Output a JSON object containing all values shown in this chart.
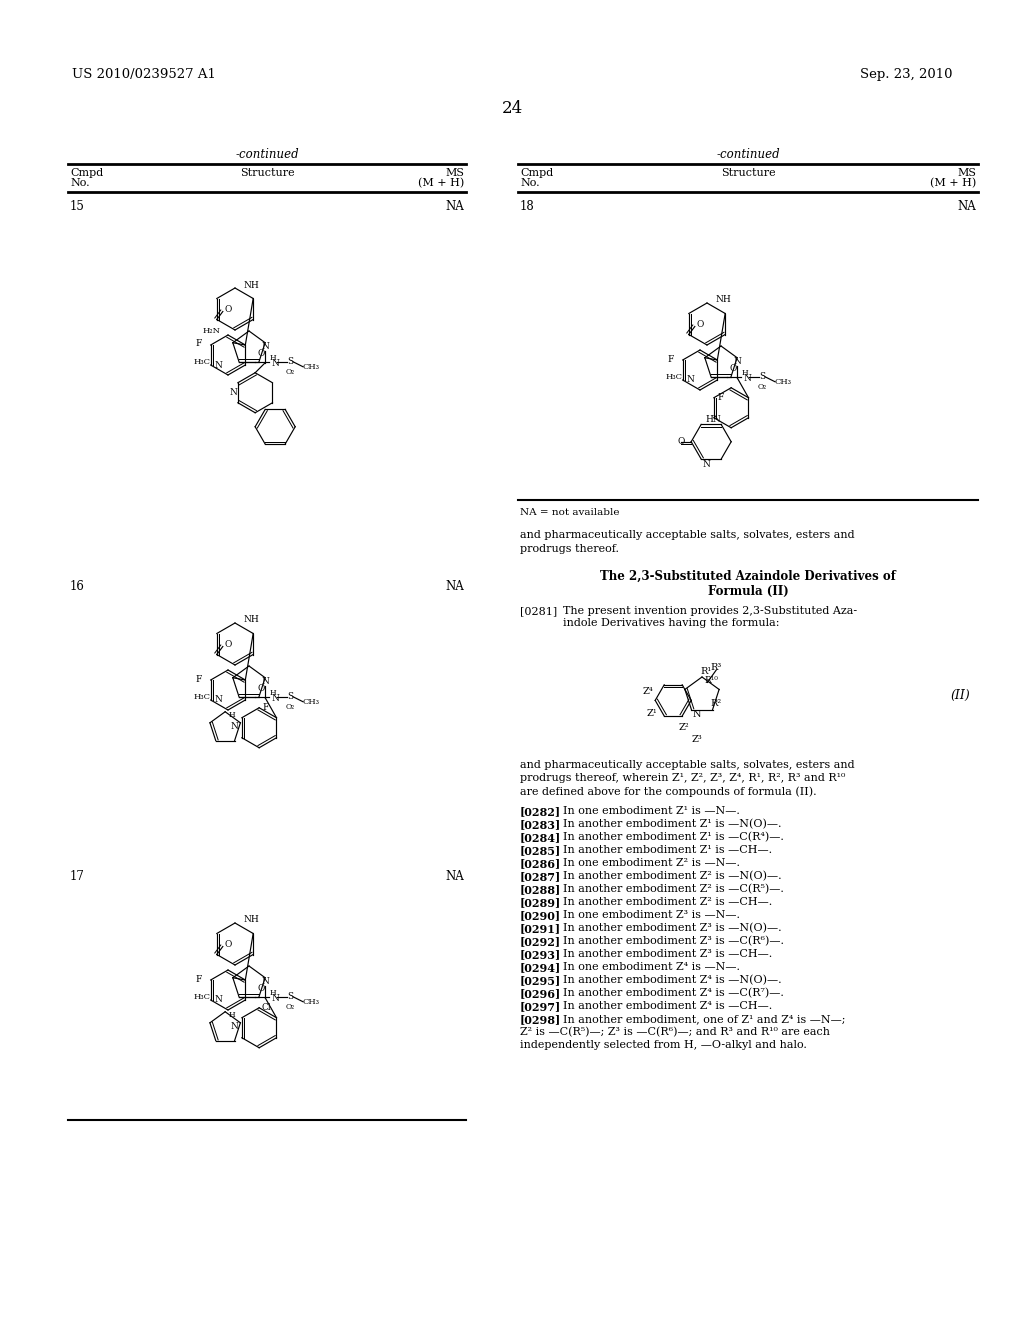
{
  "page_header_left": "US 2010/0239527 A1",
  "page_header_right": "Sep. 23, 2010",
  "page_number": "24",
  "bg_color": "#ffffff",
  "left_table_title": "-continued",
  "right_table_title": "-continued",
  "left_col_headers": [
    "Cmpd\nNo.",
    "Structure",
    "MS\n(M + H)"
  ],
  "right_col_headers": [
    "Cmpd\nNo.",
    "Structure",
    "MS\n(M + H)"
  ],
  "compounds_left": [
    {
      "num": "15",
      "ms": "NA"
    },
    {
      "num": "16",
      "ms": "NA"
    },
    {
      "num": "17",
      "ms": "NA"
    }
  ],
  "compounds_right": [
    {
      "num": "18",
      "ms": "NA"
    }
  ],
  "na_note": "NA = not available",
  "text_block1": "and pharmaceutically acceptable salts, solvates, esters and\nprodrugs thereof.",
  "section_title": "The 2,3-Substituted Azaindole Derivatives of\nFormula (II)",
  "para_0281": "[0281]   The present invention provides 2,3-Substituted Aza-\nindole Derivatives having the formula:",
  "formula_label": "(II)",
  "text_block2": "and pharmaceutically acceptable salts, solvates, esters and\nprodrugs thereof, wherein Z¹, Z², Z³, Z⁴, R¹, R², R³ and R¹⁰\nare defined above for the compounds of formula (II).",
  "paras": [
    {
      "num": "[0282]",
      "text": "In one embodiment Z¹ is —N—."
    },
    {
      "num": "[0283]",
      "text": "In another embodiment Z¹ is —N(O)—."
    },
    {
      "num": "[0284]",
      "text": "In another embodiment Z¹ is —C(R⁴)—."
    },
    {
      "num": "[0285]",
      "text": "In another embodiment Z¹ is —CH—."
    },
    {
      "num": "[0286]",
      "text": "In one embodiment Z² is —N—."
    },
    {
      "num": "[0287]",
      "text": "In another embodiment Z² is —N(O)—."
    },
    {
      "num": "[0288]",
      "text": "In another embodiment Z² is —C(R⁵)—."
    },
    {
      "num": "[0289]",
      "text": "In another embodiment Z² is —CH—."
    },
    {
      "num": "[0290]",
      "text": "In one embodiment Z³ is —N—."
    },
    {
      "num": "[0291]",
      "text": "In another embodiment Z³ is —N(O)—."
    },
    {
      "num": "[0292]",
      "text": "In another embodiment Z³ is —C(R⁶)—."
    },
    {
      "num": "[0293]",
      "text": "In another embodiment Z³ is —CH—."
    },
    {
      "num": "[0294]",
      "text": "In one embodiment Z⁴ is —N—."
    },
    {
      "num": "[0295]",
      "text": "In another embodiment Z⁴ is —N(O)—."
    },
    {
      "num": "[0296]",
      "text": "In another embodiment Z⁴ is —C(R⁷)—."
    },
    {
      "num": "[0297]",
      "text": "In another embodiment Z⁴ is —CH—."
    },
    {
      "num": "[0298]",
      "text": "In another embodiment, one of Z¹ and Z⁴ is —N—;\nZ² is —C(R⁵)—; Z³ is —C(R⁶)—; and R³ and R¹⁰ are each\nindependently selected from H, —O-alkyl and halo."
    }
  ]
}
